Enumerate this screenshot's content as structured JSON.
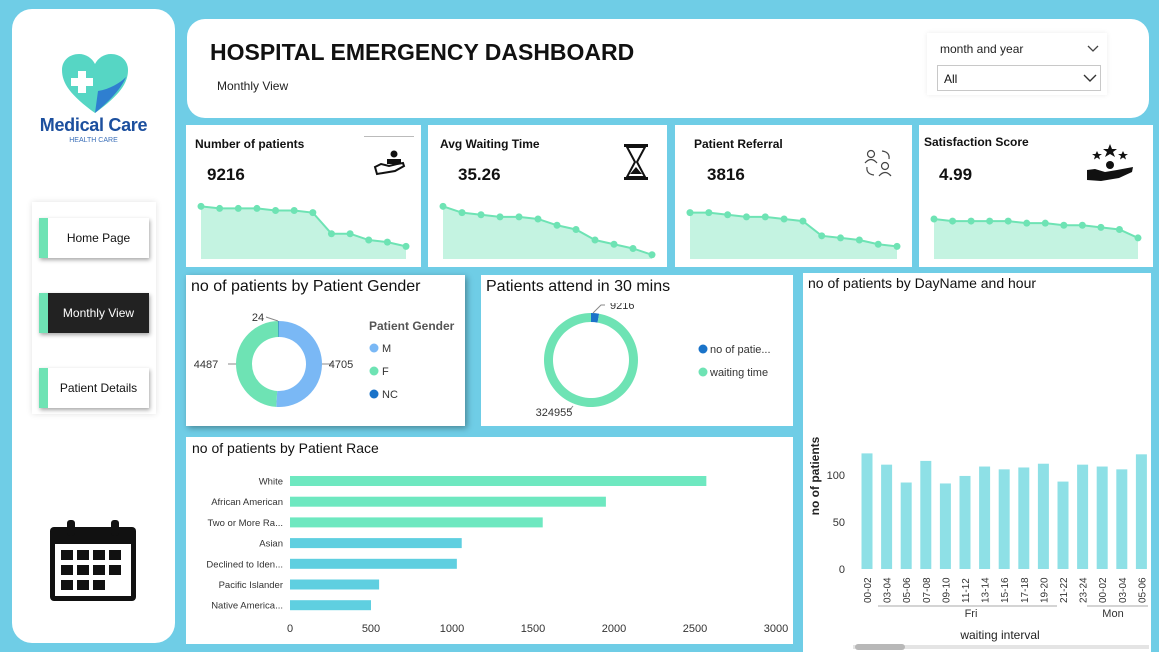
{
  "brand": {
    "name": "Medical Care",
    "tagline": "HEALTH CARE"
  },
  "nav": {
    "items": [
      {
        "label": "Home Page"
      },
      {
        "label": "Monthly View"
      },
      {
        "label": "Patient Details"
      }
    ]
  },
  "header": {
    "title": "HOSPITAL EMERGENCY DASHBOARD",
    "subtitle": "Monthly View",
    "filter": {
      "label": "month and year",
      "value": "All"
    }
  },
  "colors": {
    "accent": "#6ee3b4",
    "background": "#6fcde6",
    "bar_teal": "#8ee0e6",
    "race_green": "#6ee8c0",
    "race_blue": "#5fcfe0",
    "dark_blue": "#1a73c9",
    "light_blue": "#7ab8f5"
  },
  "kpis": [
    {
      "title": "Number of patients",
      "value": "9216",
      "icon": "hand-care-icon",
      "trend": [
        25,
        24,
        24,
        24,
        23,
        23,
        22,
        12,
        12,
        9,
        8,
        6
      ]
    },
    {
      "title": "Avg Waiting Time",
      "value": "35.26",
      "icon": "hourglass-icon",
      "trend": [
        25,
        22,
        21,
        20,
        20,
        19,
        16,
        14,
        9,
        7,
        5,
        2
      ]
    },
    {
      "title": "Patient Referral",
      "value": "3816",
      "icon": "referral-people-icon",
      "trend": [
        22,
        22,
        21,
        20,
        20,
        19,
        18,
        11,
        10,
        9,
        7,
        6
      ]
    },
    {
      "title": "Satisfaction Score",
      "value": "4.99",
      "icon": "satisfaction-stars-icon",
      "trend": [
        19,
        18,
        18,
        18,
        18,
        17,
        17,
        16,
        16,
        15,
        14,
        10
      ]
    }
  ],
  "chart_data": [
    {
      "type": "pie",
      "title": "no of patients by Patient Gender",
      "legend_title": "Patient Gender",
      "categories": [
        "M",
        "F",
        "NC"
      ],
      "values": [
        4705,
        4487,
        24
      ],
      "labels": [
        "4705",
        "4487",
        "24"
      ]
    },
    {
      "type": "pie",
      "title": "Patients attend in 30 mins",
      "categories": [
        "no of patie...",
        "waiting time"
      ],
      "values": [
        9216,
        324955
      ],
      "labels": [
        "9216",
        "324955"
      ]
    },
    {
      "type": "bar",
      "orientation": "horizontal",
      "title": "no of patients by Patient Race",
      "categories": [
        "White",
        "African American",
        "Two or More Ra...",
        "Asian",
        "Declined to Iden...",
        "Pacific Islander",
        "Native America..."
      ],
      "values": [
        2570,
        1950,
        1560,
        1060,
        1030,
        550,
        500
      ],
      "xticks": [
        "0",
        "500",
        "1000",
        "1500",
        "2000",
        "2500",
        "3000"
      ],
      "xlim": [
        0,
        3000
      ]
    },
    {
      "type": "bar",
      "title": "no of patients by DayName and hour",
      "xlabel": "waiting interval",
      "ylabel": "no of patients",
      "categories": [
        "00-02",
        "03-04",
        "05-06",
        "07-08",
        "09-10",
        "11-12",
        "13-14",
        "15-16",
        "17-18",
        "19-20",
        "21-22",
        "23-24",
        "00-02",
        "03-04",
        "05-06"
      ],
      "groups": [
        "Fri",
        "Mon"
      ],
      "values": [
        123,
        111,
        92,
        115,
        91,
        99,
        109,
        106,
        108,
        112,
        93,
        111,
        109,
        106,
        122
      ],
      "yticks": [
        "0",
        "50",
        "100"
      ],
      "ylim": [
        0,
        135
      ]
    }
  ]
}
